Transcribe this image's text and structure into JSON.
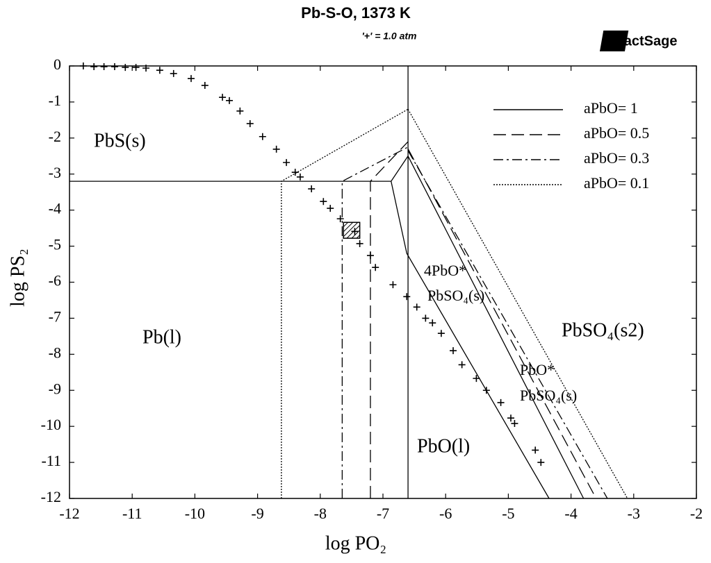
{
  "chart_data": {
    "type": "line",
    "title": "Pb-S-O, 1373 K",
    "subtitle": "'+' = 1.0 atm",
    "logo": "FactSage",
    "x_label": "log PO₂",
    "y_label": "log PS₂",
    "xlim": [
      -12,
      -2
    ],
    "ylim": [
      -12,
      0
    ],
    "xticks": [
      -12,
      -11,
      -10,
      -9,
      -8,
      -7,
      -6,
      -5,
      -4,
      -3,
      -2
    ],
    "yticks": [
      0,
      -1,
      -2,
      -3,
      -4,
      -5,
      -6,
      -7,
      -8,
      -9,
      -10,
      -11,
      -12
    ],
    "grid": false,
    "legend": "upper right",
    "series": [
      {
        "name": "aPbO= 1",
        "linestyle": "solid",
        "color": "#000000",
        "x": [
          -12,
          -6.87,
          -6.6,
          null,
          -6.87,
          -6.62,
          -4.35,
          null,
          -6.6,
          -3.8,
          null,
          -6.6,
          -6.6
        ],
        "values": [
          -3.2,
          -3.2,
          -2.5,
          null,
          -3.2,
          -5.2,
          -12,
          null,
          -2.5,
          -12,
          null,
          0,
          -12
        ]
      },
      {
        "name": "aPbO= 0.5",
        "linestyle": "dashed",
        "color": "#000000",
        "x": [
          -7.2,
          -7.2,
          -6.6,
          null,
          -6.6,
          -3.6
        ],
        "values": [
          -12,
          -3.2,
          -2.1,
          null,
          -2.3,
          -12
        ]
      },
      {
        "name": "aPbO= 0.3",
        "linestyle": "dashdot",
        "color": "#000000",
        "x": [
          -7.65,
          -7.65,
          -6.6,
          null,
          -6.6,
          -3.42
        ],
        "values": [
          -12,
          -3.2,
          -2.25,
          null,
          -2.35,
          -12
        ]
      },
      {
        "name": "aPbO= 0.1",
        "linestyle": "dotted",
        "color": "#000000",
        "x": [
          -8.62,
          -8.62,
          -6.6,
          null,
          -6.6,
          -3.1
        ],
        "values": [
          -12,
          -3.2,
          -1.2,
          null,
          -1.2,
          -12
        ]
      }
    ],
    "isobar": {
      "x": [
        -11.78,
        -11.61,
        -11.45,
        -11.28,
        -11.11,
        -10.94,
        -10.78,
        -10.56,
        -10.34,
        -10.06,
        -9.84,
        -9.56,
        -9.45,
        -9.28,
        -9.12,
        -8.92,
        -8.7,
        -8.54,
        -8.4,
        -8.32,
        -8.14,
        -7.95,
        -7.84,
        -7.68,
        -7.45,
        -7.37,
        -7.2,
        -7.12,
        -6.84,
        -6.62,
        -6.46,
        -6.32,
        -6.21,
        -6.07,
        -5.88,
        -5.74,
        -5.51,
        -5.35,
        -5.12,
        -4.96,
        -4.9,
        -4.57,
        -4.48
      ],
      "values": [
        0,
        -0.02,
        -0.02,
        -0.02,
        -0.04,
        -0.04,
        -0.06,
        -0.12,
        -0.21,
        -0.35,
        -0.54,
        -0.87,
        -0.96,
        -1.25,
        -1.6,
        -1.96,
        -2.31,
        -2.68,
        -2.95,
        -3.08,
        -3.41,
        -3.76,
        -3.95,
        -4.24,
        -4.59,
        -4.93,
        -5.26,
        -5.59,
        -6.07,
        -6.4,
        -6.69,
        -7.0,
        -7.13,
        -7.42,
        -7.9,
        -8.29,
        -8.67,
        -9.0,
        -9.34,
        -9.77,
        -9.92,
        -10.66,
        -11.0
      ]
    },
    "hatched_box": {
      "x": [
        -7.63,
        -7.37
      ],
      "y": [
        -4.78,
        -4.34
      ]
    },
    "region_labels": [
      "PbS(s)",
      "Pb(l)",
      "PbO(l)",
      "4PbO*",
      "PbSO₄(s)",
      "PbSO₄(s2)",
      "PbO*",
      "PbSO₄(s)"
    ]
  }
}
